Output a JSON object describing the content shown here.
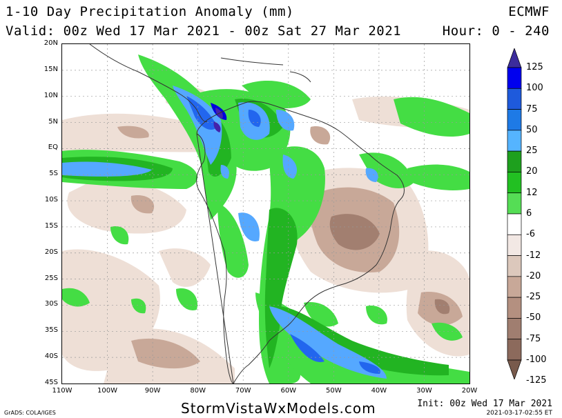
{
  "header": {
    "title": "1-10 Day Precipitation Anomaly (mm)",
    "valid": "Valid: 00z Wed 17 Mar 2021 - 00z Sat 27 Mar 2021",
    "model": "ECMWF",
    "hour": "Hour: 0 - 240"
  },
  "map": {
    "lat_labels": [
      "20N",
      "15N",
      "10N",
      "5N",
      "EQ",
      "5S",
      "10S",
      "15S",
      "20S",
      "25S",
      "30S",
      "35S",
      "40S",
      "45S"
    ],
    "lon_labels": [
      "110W",
      "100W",
      "90W",
      "80W",
      "70W",
      "60W",
      "50W",
      "40W",
      "30W",
      "20W"
    ],
    "colors": {
      "brown_light": "#eedfd6",
      "brown_mid": "#c8a898",
      "brown_dark": "#a27f70",
      "green_light": "#44dd44",
      "green_mid": "#22b422",
      "blue_light": "#55a8ff",
      "blue_mid": "#2266ee",
      "blue_dark": "#0000dd",
      "purple": "#4422aa",
      "coast": "#333333"
    }
  },
  "colorbar": {
    "labels": [
      "125",
      "100",
      "75",
      "50",
      "25",
      "20",
      "12",
      "6",
      "-6",
      "-12",
      "-20",
      "-25",
      "-50",
      "-75",
      "-100",
      "-125"
    ],
    "colors": [
      "#3c2c9c",
      "#0000ee",
      "#1e5adc",
      "#1e7ae6",
      "#55b4ff",
      "#1ea01e",
      "#22c022",
      "#55dd55",
      "#ffffff",
      "#f2e8e4",
      "#dcc8bc",
      "#c8a898",
      "#b49080",
      "#a07e70",
      "#8c6a5c",
      "#785a4c"
    ]
  },
  "footer": {
    "site": "StormVistaWxModels.com",
    "grads": "GrADS: COLA/IGES",
    "init": "Init: 00z Wed 17 Mar 2021",
    "timestamp": "2021-03-17-02:55 ET"
  }
}
